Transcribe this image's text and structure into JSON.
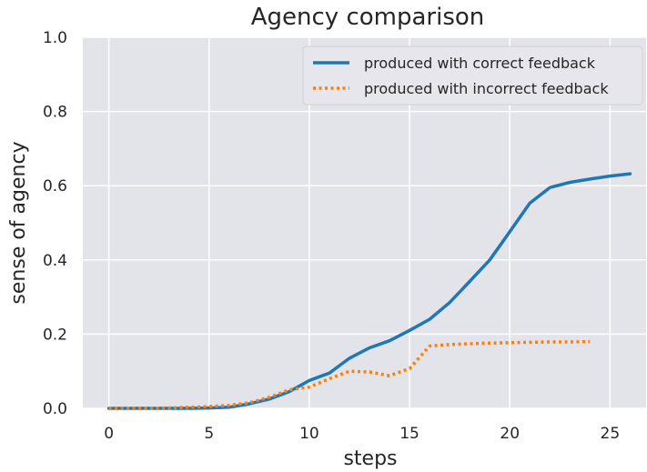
{
  "chart_data": {
    "type": "line",
    "title": "Agency comparison",
    "xlabel": "steps",
    "ylabel": "sense of agency",
    "xlim": [
      -1.3,
      26.8
    ],
    "ylim": [
      0,
      1.0
    ],
    "xticks": [
      0,
      5,
      10,
      15,
      20,
      25
    ],
    "yticks": [
      0.0,
      0.2,
      0.4,
      0.6,
      0.8,
      1.0
    ],
    "ytick_labels": [
      "0.0",
      "0.2",
      "0.4",
      "0.6",
      "0.8",
      "1.0"
    ],
    "grid": true,
    "legend_position": "top-right",
    "series": [
      {
        "name": "produced with correct feedback",
        "style": "solid",
        "color": "#1f77b4",
        "x": [
          0,
          1,
          2,
          3,
          4,
          5,
          6,
          7,
          8,
          9,
          10,
          11,
          12,
          13,
          14,
          15,
          16,
          17,
          18,
          19,
          20,
          21,
          22,
          23,
          24,
          25,
          26
        ],
        "y": [
          0.0,
          0.0,
          0.0,
          0.0,
          0.0,
          0.001,
          0.003,
          0.012,
          0.025,
          0.045,
          0.075,
          0.095,
          0.135,
          0.163,
          0.182,
          0.21,
          0.24,
          0.285,
          0.342,
          0.4,
          0.476,
          0.553,
          0.595,
          0.609,
          0.618,
          0.626,
          0.632
        ]
      },
      {
        "name": "produced with incorrect feedback",
        "style": "dotted",
        "color": "#ff7f0e",
        "x": [
          0,
          1,
          2,
          3,
          4,
          5,
          6,
          7,
          8,
          9,
          10,
          11,
          12,
          13,
          14,
          15,
          16,
          17,
          18,
          19,
          20,
          21,
          22,
          23,
          24
        ],
        "y": [
          0.0,
          0.0,
          0.0,
          0.001,
          0.003,
          0.005,
          0.008,
          0.015,
          0.03,
          0.05,
          0.057,
          0.08,
          0.1,
          0.098,
          0.088,
          0.107,
          0.168,
          0.172,
          0.174,
          0.176,
          0.177,
          0.178,
          0.179,
          0.179,
          0.18
        ]
      }
    ]
  }
}
